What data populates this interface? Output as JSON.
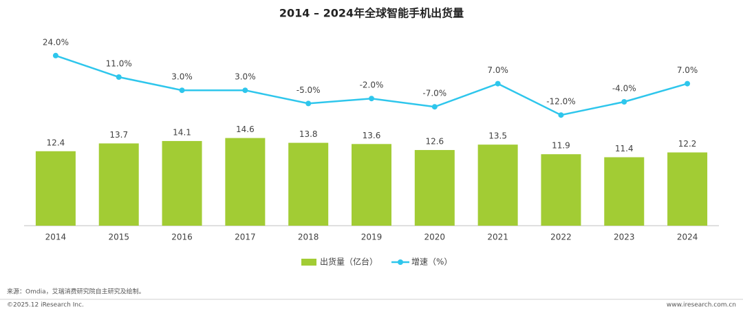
{
  "chart_data": {
    "type": "bar",
    "title": "2014 – 2024年全球智能手机出货量",
    "categories": [
      "2014",
      "2015",
      "2016",
      "2017",
      "2018",
      "2019",
      "2020",
      "2021",
      "2022",
      "2023",
      "2024"
    ],
    "series": [
      {
        "name": "出货量（亿台）",
        "type": "bar",
        "color": "#a2cc34",
        "values": [
          12.4,
          13.7,
          14.1,
          14.6,
          13.8,
          13.6,
          12.6,
          13.5,
          11.9,
          11.4,
          12.2
        ]
      },
      {
        "name": "增速（%）",
        "type": "line",
        "axis": "y2",
        "color": "#2ec6ec",
        "values": [
          24.0,
          11.0,
          3.0,
          3.0,
          -5.0,
          -2.0,
          -7.0,
          7.0,
          -12.0,
          -4.0,
          7.0
        ],
        "value_labels": [
          "24.0%",
          "11.0%",
          "3.0%",
          "3.0%",
          "-5.0%",
          "-2.0%",
          "-7.0%",
          "7.0%",
          "-12.0%",
          "-4.0%",
          "7.0%"
        ]
      }
    ],
    "ylim": [
      0,
      33
    ],
    "y2lim": [
      -79,
      41
    ],
    "legend": "bottom"
  },
  "footer": {
    "source": "来源：Omdia，艾瑞消费研究院自主研究及绘制。",
    "copyright": "©2025.12 iResearch Inc.",
    "website": "www.iresearch.com.cn"
  }
}
